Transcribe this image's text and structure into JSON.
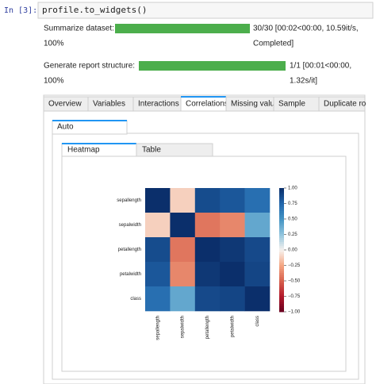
{
  "cell": {
    "prompt": "In [3]:",
    "code": "profile.to_widgets()"
  },
  "progress": [
    {
      "label": "Summarize dataset:",
      "status": "30/30 [00:02<00:00, 10.59it/s,",
      "percent": "100%",
      "status_end": "Completed]"
    },
    {
      "label": "Generate report structure:",
      "status": "1/1 [00:01<00:00,",
      "percent": "100%",
      "status_end": "1.32s/it]"
    }
  ],
  "tabs": [
    "Overview",
    "Variables",
    "Interactions",
    "Correlations",
    "Missing valu",
    "Sample",
    "Duplicate ro"
  ],
  "subtabs": [
    "Auto"
  ],
  "view_tabs": [
    "Heatmap",
    "Table"
  ],
  "heatmap": {
    "labels": [
      "sepallength",
      "sepalwidth",
      "petallength",
      "petalwidth",
      "class"
    ],
    "values": [
      [
        1.0,
        -0.11,
        0.87,
        0.82,
        0.7
      ],
      [
        -0.11,
        1.0,
        -0.42,
        -0.36,
        0.4
      ],
      [
        0.87,
        -0.42,
        1.0,
        0.96,
        0.88
      ],
      [
        0.82,
        -0.36,
        0.96,
        1.0,
        0.9
      ],
      [
        0.7,
        0.4,
        0.88,
        0.9,
        1.0
      ]
    ],
    "colorbar_ticks": [
      {
        "value": 1,
        "label": "1.00"
      },
      {
        "value": 0.75,
        "label": "0.75"
      },
      {
        "value": 0.5,
        "label": "0.50"
      },
      {
        "value": 0.25,
        "label": "0.25"
      },
      {
        "value": 0,
        "label": "0.00"
      },
      {
        "value": -0.25,
        "label": "−0.25"
      },
      {
        "value": -0.5,
        "label": "−0.50"
      },
      {
        "value": -0.75,
        "label": "−0.75"
      },
      {
        "value": -1,
        "label": "−1.00"
      }
    ]
  }
}
